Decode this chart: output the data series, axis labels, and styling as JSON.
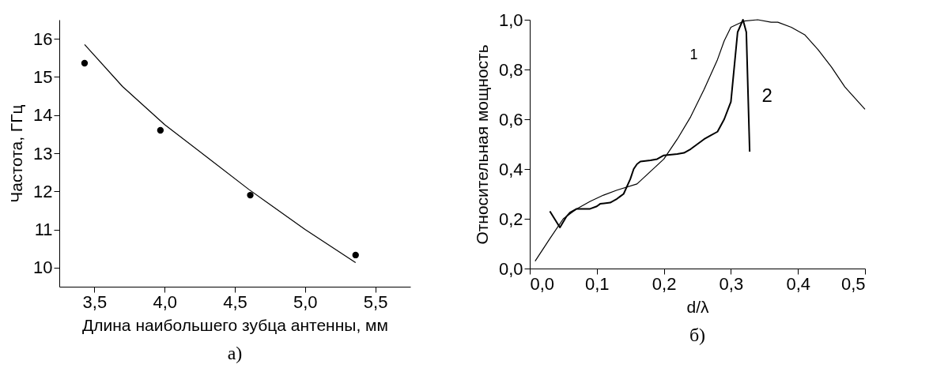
{
  "chart_data": [
    {
      "type": "scatter",
      "xlabel": "Длина наибольшего зубца антенны, мм",
      "ylabel": "Частота, ГГц",
      "annotations": [
        "а)"
      ],
      "xlim": [
        3.25,
        5.75
      ],
      "xticks": [
        {
          "value": 3.5,
          "label": "3,5"
        },
        {
          "value": 4.0,
          "label": "4,0"
        },
        {
          "value": 4.5,
          "label": "4,5"
        },
        {
          "value": 5.0,
          "label": "5,0"
        },
        {
          "value": 5.5,
          "label": "5,5"
        }
      ],
      "ylim": [
        9.5,
        16.5
      ],
      "yticks": [
        10,
        11,
        12,
        13,
        14,
        15,
        16
      ],
      "grid": false,
      "series": [
        {
          "color": "#000000",
          "marker": "circle",
          "x": [
            3.43,
            3.97,
            4.61,
            5.36
          ],
          "values": [
            15.36,
            13.6,
            11.9,
            10.33
          ]
        },
        {
          "type": "line",
          "color": "#000000",
          "x": [
            3.43,
            3.7,
            4.0,
            4.3,
            4.6,
            5.0,
            5.36
          ],
          "values": [
            15.85,
            14.75,
            13.75,
            12.9,
            12.05,
            11.0,
            10.13
          ]
        }
      ]
    },
    {
      "type": "line",
      "xlabel": "d/λ",
      "ylabel": "Относительная мощность",
      "annotations": [
        "б)"
      ],
      "xlim": [
        0,
        0.5
      ],
      "xticks": [
        {
          "value": 0,
          "label": "0,0"
        },
        {
          "value": 0.1,
          "label": "0,1"
        },
        {
          "value": 0.2,
          "label": "0,2"
        },
        {
          "value": 0.3,
          "label": "0,3"
        },
        {
          "value": 0.4,
          "label": "0,4"
        },
        {
          "value": 0.5,
          "label": "0,5"
        }
      ],
      "ylim": [
        0,
        1
      ],
      "yticks": [
        {
          "value": 0,
          "label": "0,0"
        },
        {
          "value": 0.2,
          "label": "0,2"
        },
        {
          "value": 0.4,
          "label": "0,4"
        },
        {
          "value": 0.6,
          "label": "0,6"
        },
        {
          "value": 0.8,
          "label": "0,8"
        },
        {
          "value": 1,
          "label": "1,0"
        }
      ],
      "grid": false,
      "series": [
        {
          "name": "1",
          "color": "#000000",
          "x": [
            0.008,
            0.03,
            0.05,
            0.07,
            0.09,
            0.11,
            0.13,
            0.16,
            0.18,
            0.2,
            0.22,
            0.24,
            0.26,
            0.28,
            0.29,
            0.3,
            0.32,
            0.34,
            0.36,
            0.37,
            0.39,
            0.41,
            0.43,
            0.45,
            0.47,
            0.5
          ],
          "values": [
            0.03,
            0.12,
            0.2,
            0.24,
            0.27,
            0.295,
            0.315,
            0.34,
            0.39,
            0.44,
            0.52,
            0.61,
            0.72,
            0.84,
            0.915,
            0.97,
            0.995,
            1.0,
            0.99,
            0.99,
            0.97,
            0.94,
            0.88,
            0.81,
            0.73,
            0.64
          ]
        },
        {
          "name": "2",
          "color": "#000000",
          "x": [
            0.03,
            0.045,
            0.055,
            0.06,
            0.07,
            0.09,
            0.1,
            0.105,
            0.12,
            0.13,
            0.135,
            0.14,
            0.15,
            0.155,
            0.16,
            0.165,
            0.18,
            0.19,
            0.2,
            0.22,
            0.23,
            0.24,
            0.25,
            0.26,
            0.27,
            0.28,
            0.29,
            0.3,
            0.31,
            0.318,
            0.323,
            0.328
          ],
          "values": [
            0.23,
            0.165,
            0.21,
            0.225,
            0.24,
            0.24,
            0.25,
            0.26,
            0.265,
            0.28,
            0.29,
            0.3,
            0.36,
            0.4,
            0.42,
            0.43,
            0.435,
            0.44,
            0.455,
            0.46,
            0.465,
            0.48,
            0.5,
            0.52,
            0.535,
            0.55,
            0.6,
            0.67,
            0.95,
            1.0,
            0.95,
            0.47
          ]
        }
      ]
    }
  ]
}
